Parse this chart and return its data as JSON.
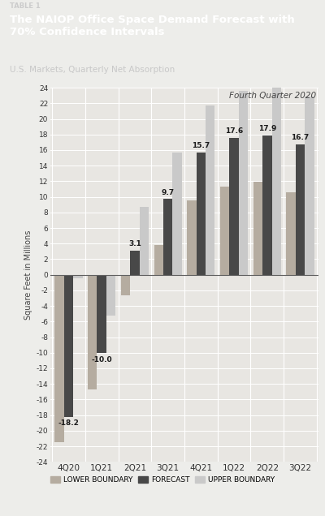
{
  "title_tag": "TABLE 1",
  "title": "The NAIOP Office Space Demand Forecast with\n70% Confidence Intervals",
  "subtitle": "U.S. Markets, Quarterly Net Absorption",
  "quarter_label": "Fourth Quarter 2020",
  "categories": [
    "4Q20",
    "1Q21",
    "2Q21",
    "3Q21",
    "4Q21",
    "1Q22",
    "2Q22",
    "3Q22"
  ],
  "lower_boundary": [
    -21.5,
    -14.7,
    -2.6,
    3.8,
    9.5,
    11.3,
    11.9,
    10.6
  ],
  "forecast": [
    -18.2,
    -10.0,
    3.1,
    9.7,
    15.7,
    17.6,
    17.9,
    16.7
  ],
  "upper_boundary": [
    -0.5,
    -5.2,
    8.7,
    15.7,
    21.7,
    23.6,
    24.1,
    22.9
  ],
  "forecast_labels": [
    "-18.2",
    "-10.0",
    "3.1",
    "9.7",
    "15.7",
    "17.6",
    "17.9",
    "16.7"
  ],
  "lower_color": "#b5aca0",
  "forecast_color": "#484848",
  "upper_color": "#c9c9c9",
  "header_bg": "#575757",
  "chart_bg": "#e8e6e2",
  "fig_bg": "#ededea",
  "ylim": [
    -24,
    24
  ],
  "yticks": [
    -24,
    -22,
    -20,
    -18,
    -16,
    -14,
    -12,
    -10,
    -8,
    -6,
    -4,
    -2,
    0,
    2,
    4,
    6,
    8,
    10,
    12,
    14,
    16,
    18,
    20,
    22,
    24
  ]
}
